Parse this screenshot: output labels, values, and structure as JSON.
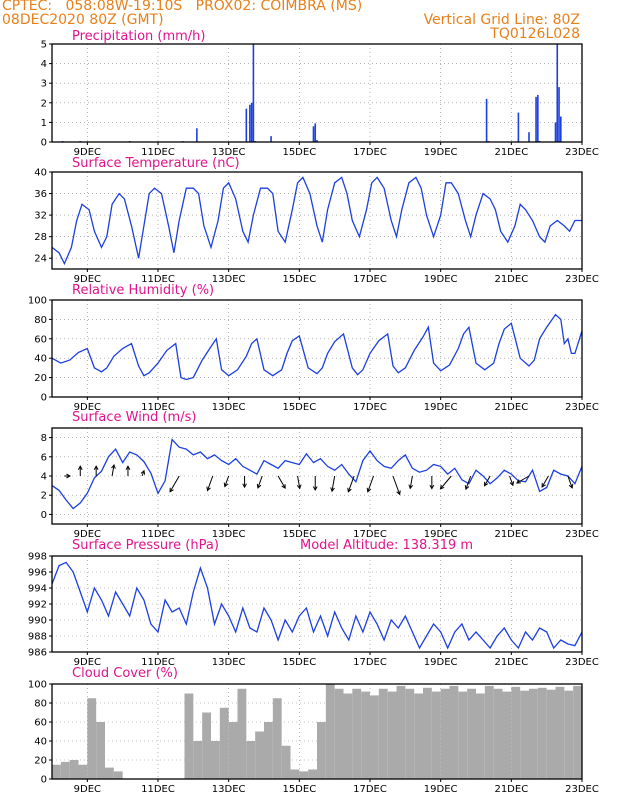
{
  "header": {
    "line1_left": "CPTEC:   058:08W-19:10S   PROX02: COIMBRA (MS)",
    "line2_left": "08DEC2020 80Z (GMT)",
    "line2_right": "Vertical Grid Line: 80Z",
    "line3_right": "TQ0126L028"
  },
  "colors": {
    "header": "#e8801a",
    "panel_title": "#e0148c",
    "line": "#1c3fe0",
    "bar": "#1c3fe0",
    "cloud": "#aaaaaa",
    "arrow": "#000000"
  },
  "x_ticks": [
    "9DEC",
    "11DEC",
    "13DEC",
    "15DEC",
    "17DEC",
    "19DEC",
    "21DEC",
    "23DEC"
  ],
  "chart_data": [
    {
      "id": "precip",
      "type": "bar",
      "title": "Precipitation (mm/h)",
      "x_unit": "days since 08DEC2020 00Z",
      "ylim": [
        0,
        5
      ],
      "yticks": [
        0,
        1,
        2,
        3,
        4,
        5
      ],
      "grid": true,
      "x": [
        0.3,
        0.8,
        2.2,
        3.7,
        4.1,
        5.5,
        5.6,
        5.65,
        5.7,
        5.75,
        6.2,
        7.4,
        7.45,
        7.5,
        12.3,
        12.35,
        13.2,
        13.5,
        13.7,
        13.75,
        13.8,
        14.25,
        14.3,
        14.35,
        14.4
      ],
      "values": [
        0.05,
        0.05,
        0.05,
        0.05,
        0.7,
        1.7,
        1.9,
        2.0,
        5.0,
        0.05,
        0.3,
        0.8,
        0.95,
        0.1,
        2.2,
        0.05,
        1.5,
        0.5,
        2.3,
        2.4,
        0.05,
        1.0,
        5.0,
        2.8,
        1.3
      ]
    },
    {
      "id": "temp",
      "type": "line",
      "title": "Surface Temperature (nC)",
      "ylim": [
        22,
        40
      ],
      "yticks": [
        24,
        28,
        32,
        36,
        40
      ],
      "grid": true,
      "x": [
        0,
        0.2,
        0.35,
        0.55,
        0.7,
        0.85,
        1.05,
        1.2,
        1.4,
        1.55,
        1.7,
        1.9,
        2.05,
        2.25,
        2.45,
        2.6,
        2.75,
        2.9,
        3.1,
        3.3,
        3.45,
        3.6,
        3.8,
        4.0,
        4.15,
        4.3,
        4.5,
        4.7,
        4.85,
        5.0,
        5.2,
        5.4,
        5.55,
        5.7,
        5.9,
        6.1,
        6.25,
        6.4,
        6.6,
        6.8,
        6.95,
        7.1,
        7.3,
        7.5,
        7.65,
        7.8,
        8.0,
        8.2,
        8.35,
        8.5,
        8.7,
        8.9,
        9.05,
        9.2,
        9.4,
        9.6,
        9.75,
        9.9,
        10.1,
        10.3,
        10.45,
        10.6,
        10.8,
        11.0,
        11.15,
        11.3,
        11.5,
        11.7,
        11.85,
        12.0,
        12.2,
        12.4,
        12.55,
        12.7,
        12.9,
        13.1,
        13.25,
        13.4,
        13.6,
        13.8,
        13.95,
        14.1,
        14.3,
        14.5,
        14.65,
        14.8,
        15.0
      ],
      "values": [
        26,
        25,
        23,
        26,
        31,
        34,
        33,
        29,
        26,
        28,
        34,
        36,
        35,
        30,
        24,
        30,
        36,
        37,
        36,
        30,
        25,
        31,
        37,
        37,
        36,
        30,
        26,
        31,
        37,
        38,
        35,
        29,
        27,
        32,
        37,
        37,
        36,
        29,
        27,
        33,
        38,
        39,
        36,
        30,
        27,
        33,
        38,
        39,
        36,
        31,
        28,
        33,
        38,
        39,
        37,
        31,
        28,
        33,
        38,
        39,
        37,
        32,
        28,
        32,
        38,
        38,
        36,
        31,
        28,
        32,
        36,
        35,
        33,
        29,
        27,
        30,
        34,
        33,
        31,
        28,
        27,
        30,
        31,
        30,
        29,
        31,
        31
      ]
    },
    {
      "id": "rh",
      "type": "line",
      "title": "Relative Humidity (%)",
      "ylim": [
        0,
        100
      ],
      "yticks": [
        0,
        20,
        40,
        60,
        80,
        100
      ],
      "grid": true,
      "x": [
        0,
        0.25,
        0.5,
        0.75,
        1.0,
        1.2,
        1.4,
        1.55,
        1.75,
        2.0,
        2.25,
        2.45,
        2.6,
        2.75,
        3.0,
        3.25,
        3.5,
        3.65,
        3.8,
        4.0,
        4.25,
        4.5,
        4.65,
        4.8,
        5.0,
        5.25,
        5.5,
        5.65,
        5.8,
        6.0,
        6.25,
        6.5,
        6.65,
        6.8,
        7.0,
        7.25,
        7.5,
        7.65,
        7.8,
        8.0,
        8.25,
        8.5,
        8.65,
        8.8,
        9.0,
        9.25,
        9.5,
        9.65,
        9.8,
        10.0,
        10.25,
        10.5,
        10.65,
        10.8,
        11.0,
        11.25,
        11.5,
        11.65,
        11.8,
        12.0,
        12.25,
        12.5,
        12.65,
        12.8,
        13.0,
        13.25,
        13.5,
        13.65,
        13.8,
        14.0,
        14.25,
        14.4,
        14.5,
        14.6,
        14.7,
        14.8,
        15.0
      ],
      "values": [
        40,
        35,
        38,
        46,
        50,
        30,
        26,
        30,
        42,
        50,
        55,
        32,
        22,
        25,
        35,
        48,
        55,
        20,
        18,
        20,
        38,
        52,
        60,
        28,
        22,
        28,
        42,
        55,
        60,
        28,
        22,
        28,
        45,
        58,
        63,
        30,
        24,
        30,
        45,
        57,
        65,
        30,
        23,
        28,
        45,
        58,
        65,
        32,
        25,
        30,
        48,
        62,
        72,
        35,
        27,
        33,
        50,
        65,
        72,
        35,
        28,
        35,
        55,
        70,
        76,
        40,
        32,
        38,
        60,
        72,
        85,
        80,
        55,
        60,
        45,
        45,
        68
      ]
    },
    {
      "id": "wind",
      "type": "line",
      "title": "Surface Wind (m/s)",
      "ylim": [
        -1,
        9
      ],
      "yticks": [
        0,
        2,
        4,
        6,
        8
      ],
      "grid": true,
      "x": [
        0,
        0.2,
        0.4,
        0.6,
        0.8,
        1.0,
        1.2,
        1.4,
        1.6,
        1.8,
        2.0,
        2.2,
        2.4,
        2.6,
        2.8,
        3.0,
        3.2,
        3.4,
        3.6,
        3.8,
        4.0,
        4.2,
        4.4,
        4.6,
        4.8,
        5.0,
        5.2,
        5.4,
        5.6,
        5.8,
        6.0,
        6.2,
        6.4,
        6.6,
        6.8,
        7.0,
        7.2,
        7.4,
        7.6,
        7.8,
        8.0,
        8.2,
        8.4,
        8.6,
        8.8,
        9.0,
        9.2,
        9.4,
        9.6,
        9.8,
        10.0,
        10.2,
        10.4,
        10.6,
        10.8,
        11.0,
        11.2,
        11.4,
        11.6,
        11.8,
        12.0,
        12.2,
        12.4,
        12.6,
        12.8,
        13.0,
        13.2,
        13.4,
        13.6,
        13.8,
        14.0,
        14.2,
        14.4,
        14.6,
        14.8,
        15.0
      ],
      "values": [
        3,
        2.5,
        1.5,
        0.6,
        1.2,
        2.2,
        3.8,
        4.5,
        6,
        6.8,
        5.4,
        6.5,
        6.2,
        5.5,
        4.3,
        2.2,
        3.5,
        7.8,
        7,
        6.8,
        6.2,
        6.5,
        5.8,
        6.2,
        5.6,
        5.2,
        5.8,
        5,
        4.6,
        4.2,
        5.6,
        5.2,
        4.8,
        5.6,
        5.4,
        5.2,
        6.3,
        5.4,
        5.8,
        5,
        4.6,
        5.2,
        4.2,
        3.4,
        5.6,
        6.6,
        5.6,
        5,
        4.8,
        5.6,
        6.2,
        4.8,
        4.4,
        4.6,
        5.2,
        5,
        4.2,
        4.8,
        3.6,
        3.2,
        4.6,
        4,
        3.2,
        3.8,
        4.6,
        4.2,
        3.5,
        3.4,
        4.6,
        2.4,
        2.8,
        4.6,
        4.2,
        4,
        3.2,
        5
      ],
      "arrows": {
        "x": [
          0.35,
          0.8,
          1.25,
          1.7,
          2.15,
          2.55,
          3.6,
          4.55,
          5.0,
          5.45,
          5.95,
          6.4,
          6.95,
          7.45,
          8.0,
          8.55,
          9.1,
          9.65,
          10.2,
          10.75,
          11.3,
          11.85,
          12.4,
          12.95,
          13.5,
          14.05,
          14.6
        ],
        "dir_deg": [
          90,
          0,
          0,
          10,
          0,
          20,
          210,
          200,
          200,
          180,
          200,
          150,
          170,
          180,
          190,
          200,
          200,
          160,
          190,
          180,
          220,
          200,
          210,
          160,
          240,
          210,
          160
        ],
        "len": [
          0.4,
          0.7,
          0.7,
          0.8,
          0.7,
          0.4,
          1.3,
          1.1,
          0.8,
          0.8,
          0.9,
          1.0,
          0.9,
          1.0,
          1.1,
          1.2,
          1.2,
          1.4,
          0.9,
          0.9,
          1.2,
          1.0,
          0.8,
          0.7,
          1.0,
          0.9,
          0.9
        ]
      }
    },
    {
      "id": "pres",
      "type": "line",
      "title": "Surface Pressure (hPa)",
      "annotation": "Model Altitude: 138.319 m",
      "ylim": [
        986,
        998
      ],
      "yticks": [
        986,
        988,
        990,
        992,
        994,
        996,
        998
      ],
      "grid": true,
      "x": [
        0,
        0.2,
        0.4,
        0.6,
        0.8,
        1.0,
        1.2,
        1.4,
        1.6,
        1.8,
        2.0,
        2.2,
        2.4,
        2.6,
        2.8,
        3.0,
        3.2,
        3.4,
        3.6,
        3.8,
        4.0,
        4.2,
        4.4,
        4.6,
        4.8,
        5.0,
        5.2,
        5.4,
        5.6,
        5.8,
        6.0,
        6.2,
        6.4,
        6.6,
        6.8,
        7.0,
        7.2,
        7.4,
        7.6,
        7.8,
        8.0,
        8.2,
        8.4,
        8.6,
        8.8,
        9.0,
        9.2,
        9.4,
        9.6,
        9.8,
        10.0,
        10.2,
        10.4,
        10.6,
        10.8,
        11.0,
        11.2,
        11.4,
        11.6,
        11.8,
        12.0,
        12.2,
        12.4,
        12.6,
        12.8,
        13.0,
        13.2,
        13.4,
        13.6,
        13.8,
        14.0,
        14.2,
        14.4,
        14.6,
        14.8,
        15.0
      ],
      "values": [
        994.5,
        996.8,
        997.2,
        996,
        993.5,
        991,
        994,
        992.5,
        990.5,
        993.5,
        992,
        990.5,
        994,
        992.5,
        989.5,
        988.5,
        992.5,
        991,
        991.5,
        989.5,
        993.5,
        996.5,
        994,
        989.5,
        992,
        990.5,
        988.5,
        991.5,
        989,
        988.5,
        991.5,
        990,
        987.5,
        990,
        988.5,
        990.5,
        991.5,
        988.5,
        990.5,
        988,
        991,
        989,
        987.5,
        990.5,
        988.5,
        991,
        989.5,
        987.5,
        990,
        989,
        990.5,
        988.5,
        986.5,
        988,
        989.5,
        988.5,
        986.5,
        988.5,
        989.5,
        987.5,
        988.5,
        987.5,
        986.5,
        988,
        989,
        987.5,
        986.5,
        988.5,
        987.5,
        989,
        988.5,
        986.5,
        987.5,
        987,
        986.8,
        988.5
      ]
    },
    {
      "id": "cloud",
      "type": "bar",
      "title": "Cloud Cover (%)",
      "ylim": [
        0,
        100
      ],
      "yticks": [
        0,
        20,
        40,
        60,
        80,
        100
      ],
      "grid": true,
      "x": [
        0,
        0.25,
        0.5,
        0.75,
        1.0,
        1.25,
        1.5,
        1.75,
        2.0,
        2.25,
        2.5,
        2.75,
        3.0,
        3.25,
        3.5,
        3.75,
        4.0,
        4.25,
        4.5,
        4.75,
        5.0,
        5.25,
        5.5,
        5.75,
        6.0,
        6.25,
        6.5,
        6.75,
        7.0,
        7.25,
        7.5,
        7.75,
        8.0,
        8.25,
        8.5,
        8.75,
        9.0,
        9.25,
        9.5,
        9.75,
        10.0,
        10.25,
        10.5,
        10.75,
        11.0,
        11.25,
        11.5,
        11.75,
        12.0,
        12.25,
        12.5,
        12.75,
        13.0,
        13.25,
        13.5,
        13.75,
        14.0,
        14.25,
        14.5,
        14.75
      ],
      "values": [
        15,
        18,
        20,
        15,
        85,
        60,
        12,
        8,
        0,
        0,
        0,
        0,
        0,
        0,
        0,
        90,
        40,
        70,
        40,
        75,
        60,
        95,
        40,
        50,
        60,
        85,
        35,
        10,
        8,
        10,
        60,
        100,
        95,
        90,
        95,
        92,
        88,
        95,
        92,
        98,
        95,
        90,
        96,
        92,
        95,
        98,
        92,
        95,
        90,
        98,
        95,
        92,
        97,
        93,
        95,
        96,
        94,
        97,
        93,
        98
      ]
    }
  ]
}
